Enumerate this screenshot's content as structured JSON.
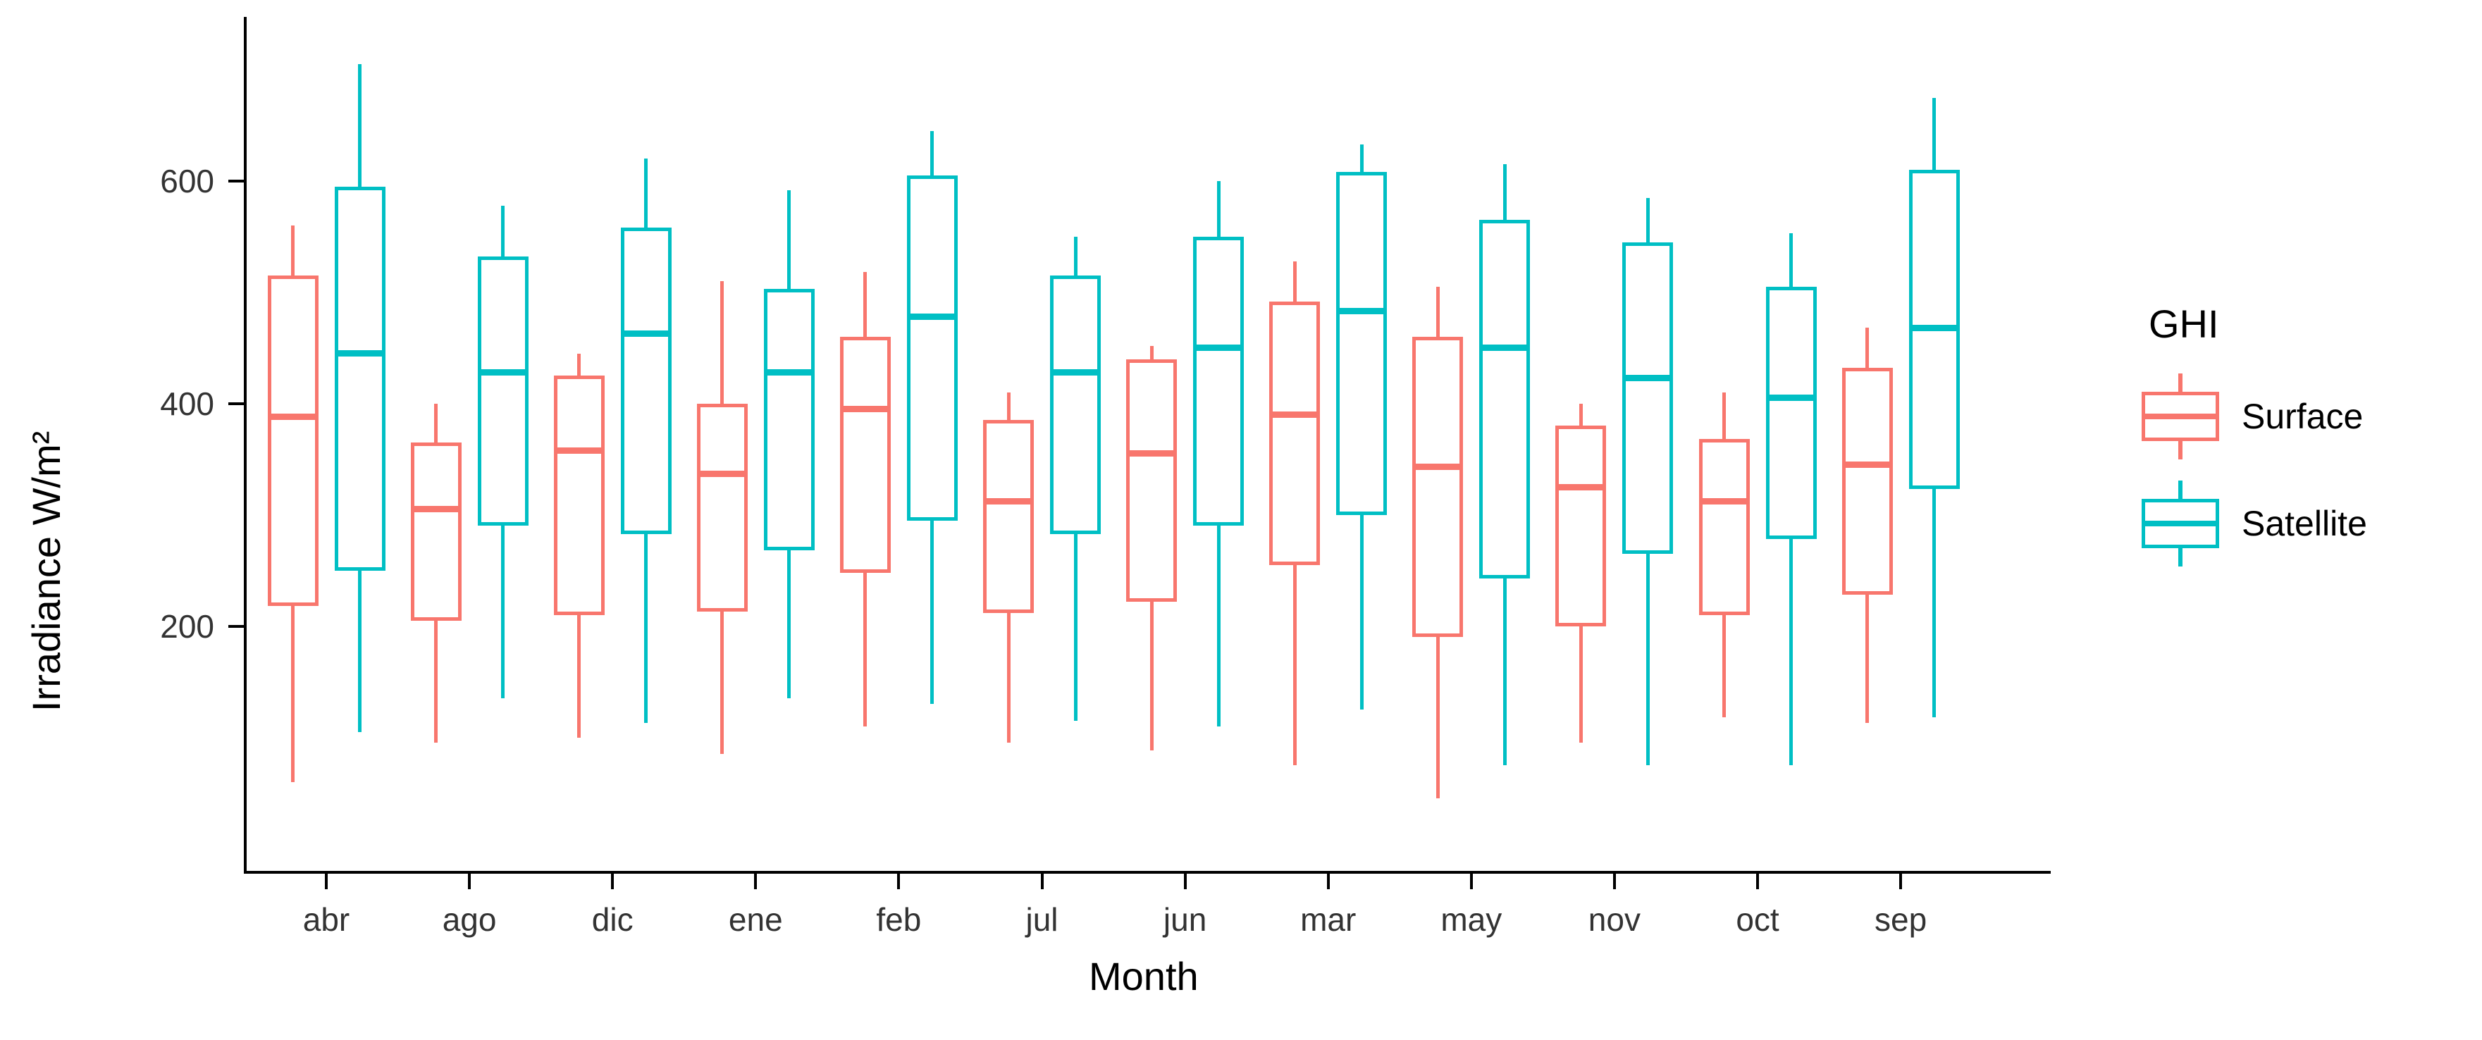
{
  "chart_data": {
    "type": "boxplot",
    "title": "",
    "xlabel": "Month",
    "ylabel": "Irradiance W/m²",
    "categories": [
      "abr",
      "ago",
      "dic",
      "ene",
      "feb",
      "jul",
      "jun",
      "mar",
      "may",
      "nov",
      "oct",
      "sep"
    ],
    "yticks": [
      200,
      400,
      600
    ],
    "ylim": [
      -20,
      745
    ],
    "grid": false,
    "legend_position": "right",
    "box_values_order": [
      "whisker_low",
      "q1",
      "median",
      "q3",
      "whisker_high"
    ],
    "series": [
      {
        "name": "Surface",
        "color": "#F8766D",
        "boxes": [
          [
            60,
            218,
            388,
            515,
            560
          ],
          [
            95,
            205,
            305,
            365,
            400
          ],
          [
            100,
            210,
            358,
            425,
            445
          ],
          [
            85,
            213,
            337,
            400,
            510
          ],
          [
            110,
            248,
            395,
            460,
            518
          ],
          [
            95,
            212,
            312,
            385,
            410
          ],
          [
            88,
            222,
            355,
            440,
            452
          ],
          [
            75,
            255,
            390,
            492,
            528
          ],
          [
            45,
            190,
            343,
            460,
            505
          ],
          [
            95,
            200,
            325,
            380,
            400
          ],
          [
            118,
            210,
            312,
            368,
            410
          ],
          [
            113,
            228,
            345,
            432,
            468
          ]
        ]
      },
      {
        "name": "Satellite",
        "color": "#00BFC4",
        "boxes": [
          [
            105,
            250,
            445,
            595,
            705
          ],
          [
            135,
            290,
            428,
            532,
            578
          ],
          [
            113,
            283,
            463,
            558,
            620
          ],
          [
            135,
            268,
            428,
            503,
            592
          ],
          [
            130,
            295,
            478,
            605,
            645
          ],
          [
            115,
            283,
            428,
            515,
            550
          ],
          [
            110,
            290,
            450,
            550,
            600
          ],
          [
            125,
            300,
            483,
            608,
            633
          ],
          [
            75,
            243,
            450,
            565,
            615
          ],
          [
            75,
            265,
            423,
            545,
            585
          ],
          [
            75,
            278,
            405,
            505,
            553
          ],
          [
            118,
            323,
            468,
            610,
            675
          ]
        ]
      }
    ]
  },
  "axes": {
    "y_title": "Irradiance W/m²",
    "x_title": "Month",
    "y_tick_labels": [
      "600",
      "400",
      "200"
    ],
    "axis_color": "#000000",
    "tick_label_color": "#333333"
  },
  "legend": {
    "title": "GHI",
    "entries": [
      {
        "label": "Surface",
        "color": "#F8766D"
      },
      {
        "label": "Satellite",
        "color": "#00BFC4"
      }
    ]
  }
}
